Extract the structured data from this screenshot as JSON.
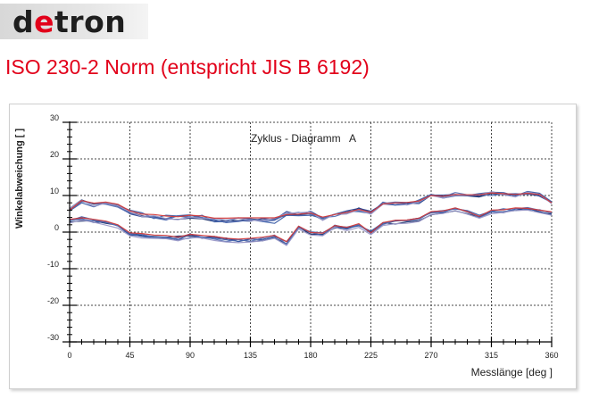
{
  "logo": {
    "part1": "d",
    "part2": "e",
    "part3": "tron"
  },
  "page_title": "ISO 230-2 Norm (entspricht JIS B 6192)",
  "colors": {
    "brand_red": "#e2001a",
    "dark_blue": "#1a2f6b",
    "mid_blue": "#3d5fa8",
    "light_purple": "#9c9ac8",
    "red_series": "#d23a3a"
  },
  "chart_data": {
    "type": "line",
    "title": "Zyklus - Diagramm   A",
    "xlabel": "Messlänge [deg ]",
    "ylabel": "Winkelabweichung [ ]",
    "xlim": [
      0,
      360
    ],
    "ylim": [
      -30,
      30
    ],
    "x_ticks": [
      0,
      45,
      90,
      135,
      180,
      225,
      270,
      315,
      360
    ],
    "y_ticks": [
      30,
      20,
      10,
      0,
      -10,
      -20,
      -30
    ],
    "x_minor_step": 9,
    "y_minor_step": 2,
    "grid": true,
    "x": [
      0,
      9,
      18,
      27,
      36,
      45,
      54,
      63,
      72,
      81,
      90,
      99,
      108,
      117,
      126,
      135,
      144,
      153,
      162,
      171,
      180,
      189,
      198,
      207,
      216,
      225,
      234,
      243,
      252,
      261,
      270,
      279,
      288,
      297,
      306,
      315,
      324,
      333,
      342,
      351,
      360
    ],
    "series": [
      {
        "color": "#1a2f6b",
        "values": [
          6.5,
          8.8,
          7.6,
          7.9,
          7.1,
          5.3,
          4.5,
          3.9,
          3.6,
          3.5,
          3.8,
          3.6,
          2.9,
          3.3,
          3.1,
          3.6,
          3.3,
          3.6,
          4.6,
          4.7,
          5.1,
          3.3,
          4.9,
          5.0,
          6.6,
          5.3,
          7.7,
          7.9,
          7.9,
          8.2,
          10.3,
          9.7,
          10.1,
          9.9,
          9.6,
          10.5,
          10.2,
          10.1,
          10.4,
          9.9,
          8.2
        ]
      },
      {
        "color": "#2a4591",
        "values": [
          6.1,
          8.4,
          7.9,
          7.7,
          7.5,
          5.0,
          4.2,
          4.2,
          3.7,
          4.5,
          4.7,
          3.9,
          3.3,
          2.6,
          3.1,
          3.0,
          3.7,
          3.4,
          5.6,
          4.7,
          5.7,
          3.8,
          4.9,
          5.8,
          6.5,
          5.7,
          7.7,
          7.4,
          7.9,
          7.8,
          10.1,
          10.1,
          10.3,
          9.9,
          9.9,
          11.0,
          10.4,
          10.1,
          10.8,
          9.8,
          8.1
        ]
      },
      {
        "color": "#3d5fa8",
        "values": [
          5.8,
          8.0,
          6.9,
          8.1,
          7.2,
          6.0,
          5.3,
          3.7,
          4.6,
          4.4,
          3.9,
          4.6,
          2.8,
          2.9,
          3.9,
          3.6,
          2.9,
          2.4,
          4.6,
          4.5,
          4.6,
          3.7,
          4.9,
          5.7,
          5.6,
          5.1,
          8.2,
          7.4,
          7.5,
          8.8,
          10.3,
          9.3,
          9.9,
          10.0,
          10.5,
          10.9,
          10.8,
          9.9,
          11.1,
          10.6,
          8.3
        ]
      },
      {
        "color": "#5570b4",
        "values": [
          6.3,
          8.5,
          7.8,
          7.6,
          6.8,
          5.1,
          5.2,
          3.9,
          3.3,
          4.5,
          4.2,
          4.0,
          3.4,
          2.6,
          2.9,
          3.4,
          2.9,
          3.2,
          4.9,
          5.4,
          4.9,
          4.0,
          4.3,
          5.4,
          5.9,
          5.1,
          7.8,
          8.2,
          8.1,
          8.4,
          10.1,
          9.6,
          10.8,
          10.2,
          10.3,
          10.0,
          10.4,
          10.5,
          10.3,
          10.4,
          7.8
        ]
      },
      {
        "color": "#9c9ac8",
        "values": [
          6.5,
          8.7,
          7.1,
          7.9,
          7.2,
          5.5,
          4.3,
          4.5,
          3.7,
          3.4,
          4.1,
          3.7,
          3.7,
          3.3,
          3.8,
          3.2,
          3.2,
          3.7,
          5.2,
          5.3,
          5.5,
          3.2,
          4.9,
          5.0,
          6.1,
          4.9,
          7.6,
          7.9,
          7.4,
          8.3,
          10.0,
          9.3,
          10.1,
          10.1,
          10.2,
          11.0,
          10.2,
          9.6,
          10.9,
          10.2,
          7.9
        ]
      },
      {
        "color": "#d23a3a",
        "values": [
          6.0,
          8.6,
          7.9,
          8.2,
          7.6,
          5.8,
          4.9,
          4.8,
          4.4,
          4.2,
          4.6,
          4.4,
          3.8,
          3.8,
          3.9,
          3.9,
          3.9,
          3.9,
          4.8,
          4.9,
          5.2,
          4.1,
          4.8,
          5.4,
          6.2,
          5.4,
          7.7,
          8.0,
          8.1,
          8.5,
          10.0,
          9.8,
          10.3,
          10.2,
          10.2,
          10.7,
          10.5,
          10.3,
          10.6,
          10.3,
          8.0
        ]
      },
      {
        "color": "#1a2f6b",
        "values": [
          2.8,
          3.0,
          3.1,
          2.4,
          1.9,
          -0.3,
          -0.9,
          -1.2,
          -1.4,
          -1.1,
          -1.0,
          -1.5,
          -1.2,
          -1.8,
          -2.0,
          -2.6,
          -2.4,
          -1.6,
          -3.2,
          1.4,
          -0.6,
          -0.6,
          1.1,
          1.2,
          1.9,
          0.1,
          2.6,
          2.2,
          2.8,
          3.1,
          4.7,
          5.2,
          5.8,
          5.0,
          4.1,
          5.5,
          5.6,
          5.9,
          6.6,
          5.4,
          4.9
        ]
      },
      {
        "color": "#2a4591",
        "values": [
          3.3,
          3.7,
          2.6,
          2.8,
          1.7,
          -0.8,
          -1.0,
          -1.3,
          -1.5,
          -2.1,
          -0.6,
          -1.7,
          -1.5,
          -1.6,
          -2.6,
          -1.9,
          -2.0,
          -1.2,
          -2.6,
          1.2,
          -0.1,
          -0.2,
          1.6,
          0.8,
          2.0,
          -0.3,
          2.2,
          3.0,
          3.3,
          3.8,
          5.3,
          5.4,
          6.6,
          5.5,
          4.2,
          5.5,
          5.3,
          6.3,
          6.4,
          5.6,
          4.6
        ]
      },
      {
        "color": "#3d5fa8",
        "values": [
          3.1,
          4.2,
          3.4,
          2.7,
          1.8,
          -0.5,
          -1.2,
          -1.6,
          -1.8,
          -1.6,
          -0.5,
          -1.4,
          -1.6,
          -2.1,
          -2.5,
          -1.8,
          -2.3,
          -1.5,
          -3.6,
          1.6,
          -0.1,
          -0.9,
          1.9,
          1.1,
          1.7,
          0.3,
          2.5,
          3.2,
          3.2,
          3.8,
          5.5,
          5.9,
          6.3,
          5.9,
          4.6,
          5.7,
          6.4,
          5.9,
          6.1,
          6.1,
          5.2
        ]
      },
      {
        "color": "#5570b4",
        "values": [
          3.3,
          3.5,
          3.1,
          2.7,
          1.7,
          -0.3,
          -0.6,
          -1.4,
          -1.3,
          -2.1,
          -1.6,
          -1.3,
          -1.9,
          -2.6,
          -2.0,
          -2.5,
          -1.6,
          -0.8,
          -3.3,
          1.2,
          0.1,
          -0.2,
          1.6,
          1.4,
          2.0,
          -0.3,
          2.1,
          3.2,
          3.1,
          3.5,
          5.5,
          5.5,
          6.5,
          5.8,
          3.9,
          5.5,
          5.5,
          6.4,
          6.7,
          6.0,
          5.3
        ]
      },
      {
        "color": "#9c9ac8",
        "values": [
          2.5,
          3.3,
          2.7,
          1.9,
          1.1,
          -1.0,
          -1.6,
          -1.7,
          -1.8,
          -2.4,
          -1.4,
          -1.6,
          -2.3,
          -2.7,
          -2.9,
          -2.7,
          -2.4,
          -1.7,
          -3.6,
          0.8,
          -0.8,
          -1.0,
          1.3,
          0.4,
          1.3,
          -0.7,
          1.8,
          2.3,
          2.4,
          2.9,
          4.8,
          5.1,
          5.9,
          4.9,
          3.8,
          5.0,
          5.4,
          5.9,
          6.0,
          5.3,
          4.6
        ]
      },
      {
        "color": "#d23a3a",
        "values": [
          3.5,
          3.9,
          3.5,
          3.0,
          2.0,
          -0.2,
          -0.4,
          -0.8,
          -0.9,
          -1.4,
          -0.6,
          -0.9,
          -1.2,
          -1.7,
          -1.9,
          -1.7,
          -1.4,
          -0.9,
          -2.6,
          1.6,
          -0.1,
          -0.3,
          1.8,
          1.3,
          2.3,
          -0.2,
          2.6,
          3.2,
          3.3,
          3.8,
          5.6,
          5.8,
          6.6,
          5.6,
          4.3,
          6.0,
          6.1,
          6.6,
          6.5,
          6.0,
          5.5
        ]
      }
    ]
  }
}
